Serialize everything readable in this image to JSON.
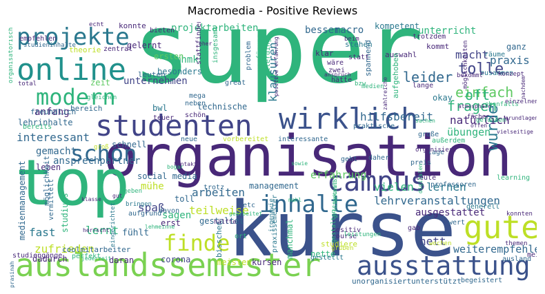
{
  "title": "Macromedia - Positive Reviews",
  "palette": {
    "purple": "#440154",
    "indigo": "#3b528b",
    "teal": "#21918c",
    "green": "#2fb47c",
    "lime": "#5ec962",
    "yellow": "#bddf26",
    "navy": "#31688e",
    "darkpurple": "#482878"
  },
  "words": [
    {
      "text": "super",
      "color": "#2fb47c"
    },
    {
      "text": "organisation",
      "color": "#482878"
    },
    {
      "text": "kurse",
      "color": "#3b528b"
    },
    {
      "text": "top",
      "color": "#2fb47c"
    },
    {
      "text": "auslandssemester",
      "color": "#7ad151"
    },
    {
      "text": "wirklich",
      "color": "#3b528b"
    },
    {
      "text": "studenten",
      "color": "#414487"
    },
    {
      "text": "campus",
      "color": "#414487"
    },
    {
      "text": "online",
      "color": "#21918c"
    },
    {
      "text": "projekte",
      "color": "#2a788e"
    },
    {
      "text": "gute",
      "color": "#bddf26"
    },
    {
      "text": "modern",
      "color": "#2fb47c"
    },
    {
      "text": "ausstattung",
      "color": "#3b528b"
    },
    {
      "text": "schon",
      "color": "#31688e"
    },
    {
      "text": "inhalte",
      "color": "#31688e"
    },
    {
      "text": "finde",
      "color": "#bddf26"
    },
    {
      "text": "wurde",
      "color": "#2a788e"
    },
    {
      "text": "tolle",
      "color": "#414487"
    },
    {
      "text": "leider",
      "color": "#31688e"
    },
    {
      "text": "einfach",
      "color": "#5ec962"
    },
    {
      "text": "oft",
      "color": "#2fb47c"
    },
    {
      "text": "fragen",
      "color": "#2fb47c"
    },
    {
      "text": "praxis",
      "color": "#31688e"
    },
    {
      "text": "macht",
      "color": "#414487"
    },
    {
      "text": "klausuren",
      "color": "#2a788e"
    },
    {
      "text": "hilfsbereit",
      "color": "#31688e"
    },
    {
      "text": "natürlich",
      "color": "#482878"
    },
    {
      "text": "interessant",
      "color": "#31688e"
    },
    {
      "text": "erfahrung",
      "color": "#5ec962"
    },
    {
      "text": "lehrveranstaltungen",
      "color": "#31688e"
    },
    {
      "text": "vielen",
      "color": "#2fb47c"
    },
    {
      "text": "lernen",
      "color": "#2a788e"
    },
    {
      "text": "ausgestattet",
      "color": "#482878"
    },
    {
      "text": "arbeiten",
      "color": "#31688e"
    },
    {
      "text": "teilweise",
      "color": "#bddf26"
    },
    {
      "text": "zufrieden",
      "color": "#bddf26"
    },
    {
      "text": "weiterempfehlen",
      "color": "#31688e"
    },
    {
      "text": "nett",
      "color": "#414487"
    },
    {
      "text": "lernt",
      "color": "#2fb47c"
    },
    {
      "text": "fast",
      "color": "#2a788e"
    },
    {
      "text": "spaß",
      "color": "#414487"
    },
    {
      "text": "übungen",
      "color": "#2fb47c"
    },
    {
      "text": "projektarbeiten",
      "color": "#2fb47c"
    },
    {
      "text": "unternehmen",
      "color": "#414487"
    },
    {
      "text": "besonders",
      "color": "#2a788e"
    },
    {
      "text": "mhmk",
      "color": "#2fb47c"
    },
    {
      "text": "erst",
      "color": "#482878"
    },
    {
      "text": "ersten",
      "color": "#5ec962"
    },
    {
      "text": "gelernt",
      "color": "#482878"
    },
    {
      "text": "konnte",
      "color": "#482878"
    },
    {
      "text": "besser",
      "color": "#31688e"
    },
    {
      "text": "macro",
      "color": "#31688e"
    },
    {
      "text": "kompetent",
      "color": "#2a788e"
    },
    {
      "text": "unterricht",
      "color": "#2fb47c"
    },
    {
      "text": "ganz",
      "color": "#31688e"
    },
    {
      "text": "anfang",
      "color": "#482878"
    },
    {
      "text": "zeit",
      "color": "#5ec962"
    },
    {
      "text": "bereich",
      "color": "#31688e"
    },
    {
      "text": "bwl",
      "color": "#2a788e"
    },
    {
      "text": "technische",
      "color": "#31688e"
    },
    {
      "text": "lehrinhalte",
      "color": "#31688e"
    },
    {
      "text": "gemacht",
      "color": "#31688e"
    },
    {
      "text": "ansprechpartner",
      "color": "#31688e"
    },
    {
      "text": "schnell",
      "color": "#31688e"
    },
    {
      "text": "medienmanagement",
      "color": "#31688e"
    },
    {
      "text": "studiums",
      "color": "#2fb47c"
    },
    {
      "text": "leben",
      "color": "#482878"
    },
    {
      "text": "mühe",
      "color": "#bddf26"
    },
    {
      "text": "social media",
      "color": "#31688e"
    },
    {
      "text": "management",
      "color": "#31688e"
    },
    {
      "text": "sagen",
      "color": "#2fb47c"
    },
    {
      "text": "fühlt",
      "color": "#31688e"
    },
    {
      "text": "corona",
      "color": "#414487"
    },
    {
      "text": "daran",
      "color": "#482878"
    },
    {
      "text": "kursen",
      "color": "#482878"
    },
    {
      "text": "meisten",
      "color": "#bddf26"
    },
    {
      "text": "manchmal",
      "color": "#2fb47c"
    },
    {
      "text": "nette",
      "color": "#2fb47c"
    },
    {
      "text": "studiere",
      "color": "#bddf26"
    },
    {
      "text": "unorganisiert",
      "color": "#31688e"
    },
    {
      "text": "unterstützt",
      "color": "#31688e"
    },
    {
      "text": "begeistert",
      "color": "#31688e"
    },
    {
      "text": "ausland",
      "color": "#31688e"
    },
    {
      "text": "meist",
      "color": "#482878"
    },
    {
      "text": "gestellt",
      "color": "#2a788e"
    },
    {
      "text": "dadurch",
      "color": "#482878"
    },
    {
      "text": "praxissemester",
      "color": "#2a788e"
    },
    {
      "text": "bisschen",
      "color": "#2a788e"
    },
    {
      "text": "gestaltet",
      "color": "#31688e"
    },
    {
      "text": "davon",
      "color": "#31688e"
    },
    {
      "text": "trotz",
      "color": "#31688e"
    },
    {
      "text": "toll",
      "color": "#31688e"
    },
    {
      "text": "etc",
      "color": "#31688e"
    },
    {
      "text": "aufgrund",
      "color": "#31688e"
    },
    {
      "text": "gab",
      "color": "#482878"
    },
    {
      "text": "wert",
      "color": "#31688e"
    },
    {
      "text": "generell",
      "color": "#2a788e"
    },
    {
      "text": "leute",
      "color": "#482878"
    },
    {
      "text": "professoren",
      "color": "#31688e"
    },
    {
      "text": "learning",
      "color": "#2fb47c"
    },
    {
      "text": "preis",
      "color": "#31688e"
    },
    {
      "text": "lage",
      "color": "#31688e"
    },
    {
      "text": "außerdem",
      "color": "#2fb47c"
    },
    {
      "text": "große",
      "color": "#31688e"
    },
    {
      "text": "daher",
      "color": "#31688e"
    },
    {
      "text": "vorbereitet",
      "color": "#bddf26"
    },
    {
      "text": "neue",
      "color": "#31688e"
    },
    {
      "text": "interessante",
      "color": "#31688e"
    },
    {
      "text": "geht",
      "color": "#31688e"
    },
    {
      "text": "praktische",
      "color": "#31688e"
    },
    {
      "text": "gefunden",
      "color": "#2fb47c"
    },
    {
      "text": "ebenfalls",
      "color": "#2fb47c"
    },
    {
      "text": "okay",
      "color": "#2a788e"
    },
    {
      "text": "lange",
      "color": "#482878"
    },
    {
      "text": "hätte",
      "color": "#482878"
    },
    {
      "text": "zwei",
      "color": "#482878"
    },
    {
      "text": "wäre",
      "color": "#482878"
    },
    {
      "text": "klar",
      "color": "#482878"
    },
    {
      "text": "spannend",
      "color": "#31688e"
    },
    {
      "text": "problem",
      "color": "#31688e"
    },
    {
      "text": "leuten",
      "color": "#31688e"
    },
    {
      "text": "great",
      "color": "#31688e"
    },
    {
      "text": "mega",
      "color": "#31688e"
    },
    {
      "text": "neben",
      "color": "#31688e"
    },
    {
      "text": "schön",
      "color": "#482878"
    },
    {
      "text": "teuer",
      "color": "#482878"
    },
    {
      "text": "kommt",
      "color": "#482878"
    },
    {
      "text": "auswahl",
      "color": "#482878"
    },
    {
      "text": "stehen",
      "color": "#2a788e"
    },
    {
      "text": "trotzdem",
      "color": "#482878"
    },
    {
      "text": "zusammen",
      "color": "#2a788e"
    },
    {
      "text": "räume",
      "color": "#2a788e"
    },
    {
      "text": "bekommt",
      "color": "#482878"
    },
    {
      "text": "konzept",
      "color": "#482878"
    },
    {
      "text": "einzelnen",
      "color": "#482878"
    },
    {
      "text": "grundlagen",
      "color": "#482878"
    },
    {
      "text": "vielseitige",
      "color": "#482878"
    },
    {
      "text": "empfehlen",
      "color": "#482878"
    },
    {
      "text": "studieninhalte",
      "color": "#31688e"
    },
    {
      "text": "total",
      "color": "#482878"
    },
    {
      "text": "freundlich",
      "color": "#31688e"
    },
    {
      "text": "bereits",
      "color": "#2fb47c"
    },
    {
      "text": "groß",
      "color": "#bddf26"
    },
    {
      "text": "theorie",
      "color": "#bddf26"
    },
    {
      "text": "zentral",
      "color": "#482878"
    },
    {
      "text": "bieten",
      "color": "#482878"
    },
    {
      "text": "echt",
      "color": "#482878"
    },
    {
      "text": "eher",
      "color": "#482878"
    },
    {
      "text": "insgesamt",
      "color": "#2fb47c"
    },
    {
      "text": "verfügung",
      "color": "#2fb47c"
    },
    {
      "text": "allerdings",
      "color": "#2fb47c"
    },
    {
      "text": "statt",
      "color": "#482878"
    },
    {
      "text": "beim",
      "color": "#482878"
    },
    {
      "text": "anspruch",
      "color": "#482878"
    },
    {
      "text": "gleichen",
      "color": "#2fb47c"
    },
    {
      "text": "bzw",
      "color": "#2fb47c"
    },
    {
      "text": "medien",
      "color": "#2fb47c"
    },
    {
      "text": "aufgehoben",
      "color": "#2fb47c"
    },
    {
      "text": "möglichkeiten",
      "color": "#482878"
    },
    {
      "text": "atmosphäre",
      "color": "#482878"
    },
    {
      "text": "fächer",
      "color": "#482878"
    },
    {
      "text": "offen",
      "color": "#482878"
    },
    {
      "text": "organisatorisch",
      "color": "#2fb47c"
    },
    {
      "text": "möglichkeit",
      "color": "#31688e"
    },
    {
      "text": "vermittelt",
      "color": "#31688e"
    },
    {
      "text": "studiengänge",
      "color": "#482878"
    },
    {
      "text": "coolmitarbeiter",
      "color": "#31688e"
    },
    {
      "text": "perfekt",
      "color": "#2fb47c"
    },
    {
      "text": "jederzeit",
      "color": "#2fb47c"
    },
    {
      "text": "herrscht",
      "color": "#482878"
    },
    {
      "text": "klasse",
      "color": "#482878"
    },
    {
      "text": "gut",
      "color": "#482878"
    },
    {
      "text": "bringen",
      "color": "#2a788e"
    },
    {
      "text": "geben",
      "color": "#2fb47c"
    },
    {
      "text": "kontakte",
      "color": "#482878"
    },
    {
      "text": "sowie",
      "color": "#2fb47c"
    },
    {
      "text": "stattfinden",
      "color": "#482878"
    },
    {
      "text": "eingerichtet",
      "color": "#2a788e"
    },
    {
      "text": "hälfte",
      "color": "#482878"
    },
    {
      "text": "ort",
      "color": "#2fb47c"
    },
    {
      "text": "positiv",
      "color": "#482878"
    },
    {
      "text": "course",
      "color": "#482878"
    },
    {
      "text": "gruben",
      "color": "#bddf26"
    },
    {
      "text": "wochen",
      "color": "#bddf26"
    },
    {
      "text": "themen",
      "color": "#482878"
    },
    {
      "text": "konnten",
      "color": "#482878"
    },
    {
      "text": "digitalen",
      "color": "#2fb47c"
    },
    {
      "text": "größtenteils",
      "color": "#2fb47c"
    },
    {
      "text": "leistungen",
      "color": "#2fb47c"
    },
    {
      "text": "gestalten",
      "color": "#2fb47c"
    },
    {
      "text": "organisiert",
      "color": "#482878"
    },
    {
      "text": "bogar",
      "color": "#2fb47c"
    },
    {
      "text": "mahl",
      "color": "#2fb47c"
    },
    {
      "text": "prasinah",
      "color": "#31688e"
    },
    {
      "text": "lehmeinne",
      "color": "#2fb47c"
    },
    {
      "text": "gearbeitet",
      "color": "#2fb47c"
    },
    {
      "text": "bekannt",
      "color": "#2fb47c"
    },
    {
      "text": "irgendwie",
      "color": "#2a788e"
    },
    {
      "text": "positive erfahrung",
      "color": "#482878"
    },
    {
      "text": "zahlreiche",
      "color": "#482878"
    },
    {
      "text": "nachdem",
      "color": "#482878"
    },
    {
      "text": "sachen",
      "color": "#2fb47c"
    }
  ]
}
